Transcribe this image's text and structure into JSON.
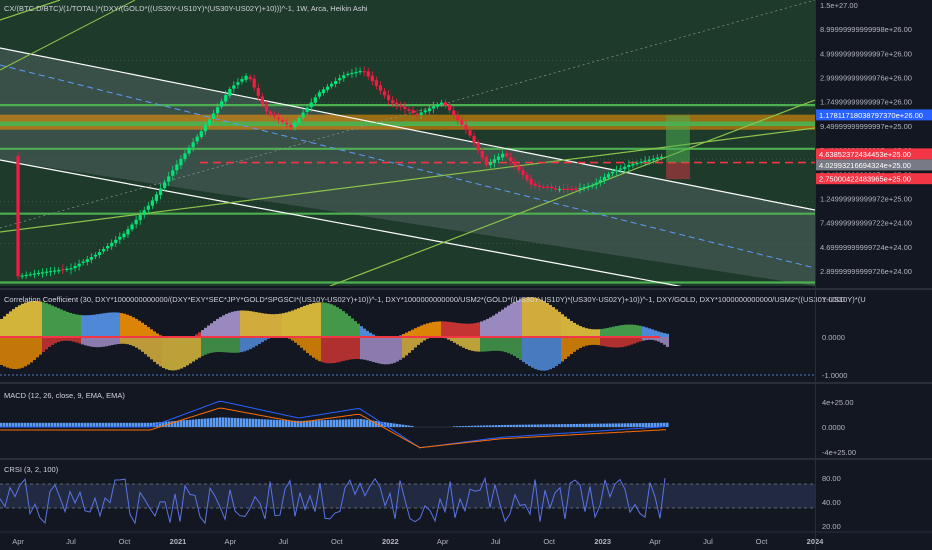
{
  "colors": {
    "background": "#131722",
    "main_pane": "#1e3a2b",
    "bull": "#00e676",
    "bear": "#ff1744",
    "green_line": "#4caf50",
    "orange_band": "#ff9800",
    "white_channel": "#ffffff",
    "dash_blue": "#5b9cf6",
    "lime": "#8bc34a",
    "red_dash": "#f23645",
    "macd": "#2962ff",
    "signal": "#ff6d00",
    "crsi": "#5b74e6"
  },
  "main_pane": {
    "title": "CX/(BTC.D/BTC)/(1/TOTAL)*(DXY/(GOLD*((US30Y-US10Y)*(US30Y-US02Y)+10)))^-1, 1W, Arca, Heikin Ashi"
  },
  "price_axis": {
    "labels": [
      "1.5e+27.00",
      "8.99999999999998e+26.00",
      "4.99999999999997e+26.00",
      "2.99999999999976e+26.00",
      "1.74999999999997e+26.00",
      "9.49999999999997e+25.00",
      "5.49999999999997e+25.00",
      "2.24999999999974e+25.00",
      "1.24999999999972e+25.00",
      "7.49999999999722e+24.00",
      "4.69999999999724e+24.00",
      "2.89999999999726e+24.00"
    ],
    "tags": [
      {
        "text": "1.17811718038797370e+26.00",
        "bg": "#2962ff"
      },
      {
        "text": "4.63852372434453e+25.00",
        "bg": "#f23645"
      },
      {
        "text": "4.02993216694324e+25.00",
        "bg": "#787b86"
      },
      {
        "text": "2.75000422483965e+25.00",
        "bg": "#f23645"
      }
    ]
  },
  "correlation_pane": {
    "title": "Correlation Coefficient (30, DXY*1000000000000/(DXY*EXY*SEC*JPY*GOLD*SPGSCI*(US10Y-US02Y)+10))^-1, DXY*1000000000000/USM2*(GOLD*((US30Y-US10Y)*(US30Y-US02Y)+10))^-1, DXY/GOLD, DXY*1000000000000/USM2*((US30Y-US10Y)*(U",
    "axis_labels": [
      "1.0000",
      "0.0000",
      "-1.0000"
    ]
  },
  "macd_pane": {
    "title": "MACD (12, 26, close, 9, EMA, EMA)",
    "axis_labels": [
      "4e+25.00",
      "0.0000",
      "-4e+25.00"
    ]
  },
  "crsi_pane": {
    "title": "CRSI (3, 2, 100)",
    "axis_labels": [
      "80.00",
      "40.00",
      "20.00"
    ]
  },
  "time_axis": {
    "labels": [
      "Apr",
      "Jul",
      "Oct",
      "2021",
      "Apr",
      "Jul",
      "Oct",
      "2022",
      "Apr",
      "Jul",
      "Oct",
      "2023",
      "Apr",
      "Jul",
      "Oct",
      "2024"
    ]
  },
  "chart_data": {
    "type": "candlestick",
    "title": "CX/(BTC.D/BTC)/(1/TOTAL)*(DXY/(GOLD*((US30Y-US10Y)*(US30Y-US02Y)+10)))^-1, 1W, Arca, Heikin Ashi",
    "y_scale": "log",
    "x_range": [
      "2020-03",
      "2024-01"
    ],
    "close_path": [
      [
        "2020-04-01",
        3e+24
      ],
      [
        "2020-05-15",
        3.3e+24
      ],
      [
        "2020-07-01",
        3.6e+24
      ],
      [
        "2020-08-15",
        5e+24
      ],
      [
        "2020-10-01",
        8e+24
      ],
      [
        "2020-11-15",
        1.6e+25
      ],
      [
        "2021-01-01",
        4e+25
      ],
      [
        "2021-02-15",
        9e+25
      ],
      [
        "2021-04-01",
        2.2e+26
      ],
      [
        "2021-05-01",
        3e+26
      ],
      [
        "2021-06-01",
        1.3e+26
      ],
      [
        "2021-07-15",
        9e+25
      ],
      [
        "2021-09-01",
        2e+26
      ],
      [
        "2021-10-15",
        3e+26
      ],
      [
        "2021-11-15",
        3.3e+26
      ],
      [
        "2022-01-01",
        1.6e+26
      ],
      [
        "2022-02-15",
        1.2e+26
      ],
      [
        "2022-04-01",
        1.6e+26
      ],
      [
        "2022-05-15",
        8e+25
      ],
      [
        "2022-06-15",
        3.8e+25
      ],
      [
        "2022-07-15",
        5e+25
      ],
      [
        "2022-09-01",
        2.4e+25
      ],
      [
        "2022-10-15",
        2.2e+25
      ],
      [
        "2022-11-15",
        2.2e+25
      ],
      [
        "2022-12-15",
        2.4e+25
      ],
      [
        "2023-01-15",
        3.2e+25
      ],
      [
        "2023-02-15",
        3.8e+25
      ],
      [
        "2023-03-15",
        4.2e+25
      ],
      [
        "2023-04-15",
        4.63e+25
      ]
    ],
    "horizontal_levels": [
      1.49e+26,
      1e+26,
      9.5e+25,
      5.5e+25,
      1.25e+25,
      2.6e+24
    ],
    "red_dashed_level": 4.02e+25,
    "orange_band": [
      1.2e+26,
      8.5e+25
    ],
    "long_position": {
      "stop": 2.75e+25,
      "entry": 4.03e+25,
      "target": 1.18e+26
    },
    "series": [
      {
        "name": "MACD (12, 26, close, 9, EMA, EMA)",
        "type": "macd"
      },
      {
        "name": "Correlation Coefficient (30)",
        "type": "area",
        "range": [
          -1,
          1
        ]
      },
      {
        "name": "CRSI (3, 2, 100)",
        "type": "line",
        "range": [
          20,
          80
        ]
      }
    ]
  }
}
